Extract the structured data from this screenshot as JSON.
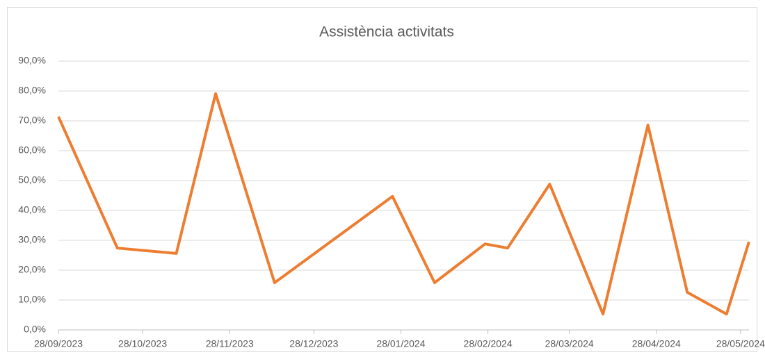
{
  "chart_data": {
    "type": "line",
    "title": "Assistència activitats",
    "x": [
      "28/09/2023",
      "19/10/2023",
      "09/11/2023",
      "23/11/2023",
      "14/12/2023",
      "25/01/2024",
      "09/02/2024",
      "27/02/2024",
      "06/03/2024",
      "21/03/2024",
      "09/04/2024",
      "25/04/2024",
      "09/05/2024",
      "23/05/2024",
      "31/05/2024"
    ],
    "series": [
      {
        "name": "Assistència",
        "color": "#ed7d31",
        "values": [
          71.4,
          27.4,
          25.6,
          79.1,
          15.8,
          44.7,
          15.8,
          28.8,
          27.4,
          48.8,
          5.3,
          68.6,
          12.6,
          5.3,
          29.5
        ]
      }
    ],
    "xlim": [
      "28/09/2023",
      "31/05/2024"
    ],
    "xticks": [
      "28/09/2023",
      "28/10/2023",
      "28/11/2023",
      "28/12/2023",
      "28/01/2024",
      "28/02/2024",
      "28/03/2024",
      "28/04/2024",
      "28/05/2024"
    ],
    "ylim": [
      0,
      90
    ],
    "yticks": [
      {
        "value": 0,
        "label": "0,0%"
      },
      {
        "value": 10,
        "label": "10,0%"
      },
      {
        "value": 20,
        "label": "20,0%"
      },
      {
        "value": 30,
        "label": "30,0%"
      },
      {
        "value": 40,
        "label": "40,0%"
      },
      {
        "value": 50,
        "label": "50,0%"
      },
      {
        "value": 60,
        "label": "60,0%"
      },
      {
        "value": 70,
        "label": "70,0%"
      },
      {
        "value": 80,
        "label": "80,0%"
      },
      {
        "value": 90,
        "label": "90,0%"
      }
    ],
    "grid": true
  }
}
